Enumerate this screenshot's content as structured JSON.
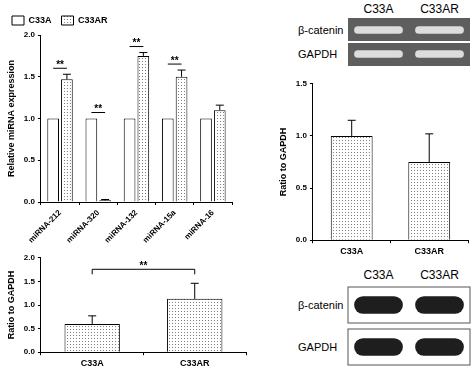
{
  "chart_data": [
    {
      "type": "bar",
      "y_label": "Relative miRNA expression",
      "categories": [
        "miRNA-212",
        "miRNA-320",
        "miRNA-132",
        "miRNA-15a",
        "miRNA-16"
      ],
      "series": [
        {
          "name": "C33A",
          "color": "#ffffff",
          "values": [
            1,
            1,
            1,
            1,
            1
          ]
        },
        {
          "name": "C33AR",
          "color": "#808080",
          "values": [
            1.47,
            0.02,
            1.75,
            1.5,
            1.1
          ],
          "errors": [
            0.06,
            0.01,
            0.04,
            0.08,
            0.06
          ]
        }
      ],
      "ylim": [
        0,
        2
      ],
      "yticks": [
        {
          "value": 0,
          "label": "0.0"
        },
        0.5,
        {
          "value": 1,
          "label": "1.0"
        },
        1.5,
        {
          "value": 2,
          "label": "2.0"
        }
      ],
      "grid": false,
      "legend": "top-left",
      "annotations": [
        {
          "text": "**",
          "category": "miRNA-212"
        },
        {
          "text": "**",
          "category": "miRNA-320"
        },
        {
          "text": "**",
          "category": "miRNA-132"
        },
        {
          "text": "**",
          "category": "miRNA-15a"
        }
      ]
    },
    {
      "type": "bar",
      "y_label": "Ratio to GAPDH",
      "categories": [
        "C33A",
        "C33AR"
      ],
      "values": [
        1.0,
        0.75
      ],
      "errors": [
        0.15,
        0.27
      ],
      "color": "#808080",
      "ylim": [
        0,
        1.5
      ],
      "yticks": [
        {
          "value": 0,
          "label": "0.0"
        },
        0.5,
        {
          "value": 1,
          "label": "1.0"
        },
        1.5
      ],
      "grid": false
    },
    {
      "type": "bar",
      "y_label": "Ratio to GAPDH",
      "categories": [
        "C33A",
        "C33AR"
      ],
      "values": [
        0.6,
        1.13
      ],
      "errors": [
        0.17,
        0.33
      ],
      "color": "#808080",
      "ylim": [
        0,
        2
      ],
      "yticks": [
        {
          "value": 0,
          "label": "0.0"
        },
        0.5,
        {
          "value": 1,
          "label": "1.0"
        },
        1.5,
        {
          "value": 2,
          "label": "2.0"
        }
      ],
      "grid": false,
      "annotations": [
        {
          "text": "**",
          "categories": [
            "C33A",
            "C33AR"
          ]
        }
      ]
    }
  ],
  "gels": [
    {
      "type": "RT-PCR",
      "lanes": [
        "C33A",
        "C33AR"
      ],
      "rows": [
        "β-catenin",
        "GAPDH"
      ]
    },
    {
      "type": "western blot",
      "lanes": [
        "C33A",
        "C33AR"
      ],
      "rows": [
        "β-catenin",
        "GAPDH"
      ]
    }
  ]
}
